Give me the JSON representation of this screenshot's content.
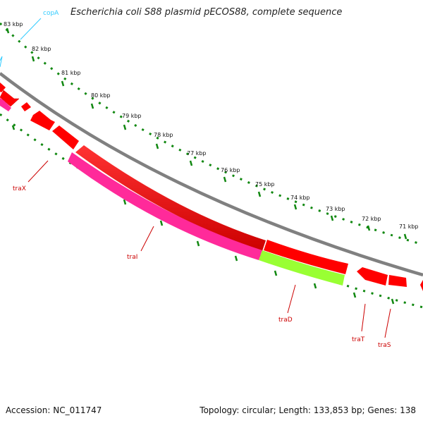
{
  "title": "Escherichia coli S88 plasmid pECOS88, complete sequence",
  "footer": {
    "accession": "Accession: NC_011747",
    "summary": "Topology: circular; Length: 133,853 bp; Genes: 138"
  },
  "ticks": [
    "83 kbp",
    "82 kbp",
    "81 kbp",
    "80 kbp",
    "79 kbp",
    "78 kbp",
    "77 kbp",
    "76 kbp",
    "75 kbp",
    "74 kbp",
    "73 kbp",
    "72 kbp",
    "71 kbp"
  ],
  "genes": [
    {
      "name": "copA",
      "color": "#33ccff"
    },
    {
      "name": "traX",
      "color": "#cc0000"
    },
    {
      "name": "traI",
      "color": "#cc0000"
    },
    {
      "name": "traD",
      "color": "#cc0000"
    },
    {
      "name": "traT",
      "color": "#cc0000"
    },
    {
      "name": "traS",
      "color": "#cc0000"
    }
  ],
  "colors": {
    "backbone": "#808080",
    "cds": "#ff0000",
    "traI_feature": "#ff2a9a",
    "traD_feature": "#99ff33",
    "tick": "#118811"
  }
}
